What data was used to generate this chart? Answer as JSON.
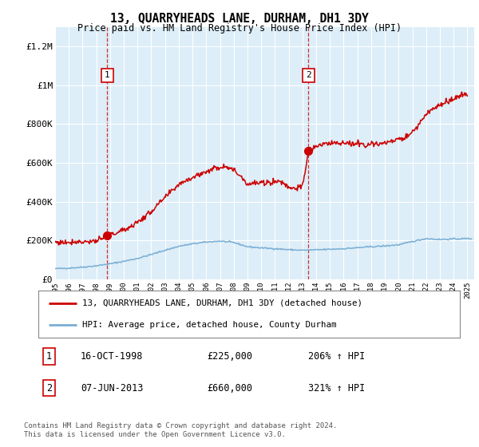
{
  "title": "13, QUARRYHEADS LANE, DURHAM, DH1 3DY",
  "subtitle": "Price paid vs. HM Land Registry's House Price Index (HPI)",
  "ylim": [
    0,
    1300000
  ],
  "yticks": [
    0,
    200000,
    400000,
    600000,
    800000,
    1000000,
    1200000
  ],
  "ytick_labels": [
    "£0",
    "£200K",
    "£400K",
    "£600K",
    "£800K",
    "£1M",
    "£1.2M"
  ],
  "sale1": {
    "date_num": 1998.79,
    "price": 225000,
    "label": "1",
    "date_str": "16-OCT-1998",
    "hpi_pct": "206%"
  },
  "sale2": {
    "date_num": 2013.44,
    "price": 660000,
    "label": "2",
    "date_str": "07-JUN-2013",
    "hpi_pct": "321%"
  },
  "red_color": "#cc0000",
  "blue_color": "#7aaed4",
  "bg_plot": "#ddeef8",
  "bg_figure": "#ffffff",
  "grid_color": "#ffffff",
  "legend_text1": "13, QUARRYHEADS LANE, DURHAM, DH1 3DY (detached house)",
  "legend_text2": "HPI: Average price, detached house, County Durham",
  "footer": "Contains HM Land Registry data © Crown copyright and database right 2024.\nThis data is licensed under the Open Government Licence v3.0.",
  "xmin": 1995.0,
  "xmax": 2025.5,
  "hpi_years": [
    1995,
    1996,
    1997,
    1998,
    1999,
    2000,
    2001,
    2002,
    2003,
    2004,
    2005,
    2006,
    2007,
    2008,
    2009,
    2010,
    2011,
    2012,
    2013,
    2014,
    2015,
    2016,
    2017,
    2018,
    2019,
    2020,
    2021,
    2022,
    2023,
    2024,
    2025
  ],
  "hpi_vals": [
    55000,
    58000,
    63000,
    70000,
    80000,
    93000,
    108000,
    128000,
    150000,
    170000,
    183000,
    192000,
    197000,
    190000,
    168000,
    162000,
    158000,
    153000,
    150000,
    152000,
    155000,
    158000,
    163000,
    168000,
    172000,
    178000,
    195000,
    210000,
    205000,
    208000,
    210000
  ],
  "red_years": [
    1995.0,
    1995.5,
    1996.0,
    1996.5,
    1997.0,
    1997.5,
    1998.0,
    1998.5,
    1998.79,
    1999.0,
    1999.5,
    2000.0,
    2000.5,
    2001.0,
    2001.5,
    2002.0,
    2002.5,
    2003.0,
    2003.5,
    2004.0,
    2004.5,
    2005.0,
    2005.5,
    2006.0,
    2006.5,
    2007.0,
    2007.5,
    2008.0,
    2008.5,
    2009.0,
    2009.5,
    2010.0,
    2010.5,
    2011.0,
    2011.5,
    2012.0,
    2012.5,
    2013.0,
    2013.44,
    2013.5,
    2014.0,
    2014.5,
    2015.0,
    2015.5,
    2016.0,
    2016.5,
    2017.0,
    2017.5,
    2018.0,
    2018.5,
    2019.0,
    2019.5,
    2020.0,
    2020.5,
    2021.0,
    2021.5,
    2022.0,
    2022.5,
    2023.0,
    2023.5,
    2024.0,
    2024.5,
    2025.0
  ],
  "red_vals": [
    192000,
    190000,
    192000,
    195000,
    193000,
    196000,
    197000,
    210000,
    225000,
    230000,
    240000,
    255000,
    272000,
    295000,
    320000,
    350000,
    385000,
    420000,
    455000,
    490000,
    510000,
    525000,
    540000,
    555000,
    570000,
    578000,
    585000,
    560000,
    535000,
    490000,
    495000,
    495000,
    498000,
    505000,
    502000,
    475000,
    470000,
    475000,
    660000,
    665000,
    685000,
    695000,
    700000,
    705000,
    700000,
    695000,
    700000,
    695000,
    695000,
    700000,
    700000,
    710000,
    720000,
    730000,
    760000,
    800000,
    850000,
    880000,
    900000,
    910000,
    930000,
    945000,
    950000
  ]
}
